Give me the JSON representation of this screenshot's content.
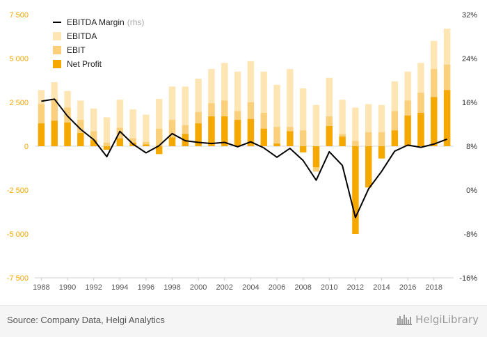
{
  "chart_data": {
    "type": "bar",
    "x": [
      "1988",
      "1989",
      "1990",
      "1991",
      "1992",
      "1993",
      "1994",
      "1995",
      "1996",
      "1997",
      "1998",
      "1999",
      "2000",
      "2001",
      "2002",
      "2003",
      "2004",
      "2005",
      "2006",
      "2007",
      "2008",
      "2009",
      "2010",
      "2011",
      "2012",
      "2013",
      "2014",
      "2015",
      "2016",
      "2017",
      "2018",
      "2019"
    ],
    "x_tick_labels": [
      "1988",
      "1990",
      "1992",
      "1994",
      "1996",
      "1998",
      "2000",
      "2002",
      "2004",
      "2006",
      "2008",
      "2010",
      "2012",
      "2014",
      "2016",
      "2018"
    ],
    "series": [
      {
        "name": "EBITDA",
        "axis": "left",
        "color": "#fde6b4",
        "values": [
          3200,
          3650,
          3150,
          2600,
          2150,
          1650,
          2650,
          2100,
          1800,
          2700,
          3400,
          3400,
          3850,
          4400,
          4750,
          4250,
          4850,
          4250,
          3500,
          4400,
          3300,
          2350,
          3900,
          2650,
          2200,
          2400,
          2350,
          3700,
          4250,
          4750,
          6000,
          6700
        ]
      },
      {
        "name": "EBIT",
        "axis": "left",
        "color": "#fbd07c",
        "values": [
          2400,
          2700,
          2200,
          1500,
          850,
          200,
          1050,
          450,
          250,
          1000,
          1500,
          1200,
          1950,
          2450,
          2600,
          2000,
          2500,
          1900,
          1100,
          1100,
          900,
          -1450,
          1700,
          700,
          300,
          800,
          800,
          2000,
          2600,
          3050,
          4400,
          4650
        ]
      },
      {
        "name": "Net Profit",
        "axis": "left",
        "color": "#f5a800",
        "values": [
          1300,
          1450,
          1350,
          750,
          350,
          -200,
          450,
          200,
          100,
          -450,
          500,
          700,
          1300,
          1700,
          1700,
          1500,
          1550,
          1000,
          150,
          850,
          -350,
          -1200,
          1150,
          550,
          -5000,
          -2350,
          -700,
          900,
          1750,
          1900,
          2800,
          3200
        ]
      },
      {
        "name": "EBITDA Margin",
        "axis": "right",
        "color": "#000000",
        "values": [
          16.2,
          16.6,
          13.5,
          11.1,
          9.2,
          6.1,
          10.7,
          8.4,
          6.8,
          8.1,
          10.3,
          9.0,
          8.7,
          8.5,
          8.7,
          7.9,
          8.8,
          7.7,
          6.0,
          7.6,
          5.4,
          1.8,
          7.0,
          4.5,
          -5.0,
          0.2,
          3.4,
          7.1,
          8.2,
          7.8,
          8.4,
          9.3
        ]
      }
    ],
    "ylim_left": [
      -7500,
      7500
    ],
    "ylim_right": [
      -16,
      32
    ],
    "y_left_ticks": [
      {
        "value": 7500,
        "label": "7 500"
      },
      {
        "value": 5000,
        "label": "5 000"
      },
      {
        "value": 2500,
        "label": "2 500"
      },
      {
        "value": 0,
        "label": "0"
      },
      {
        "value": -2500,
        "label": "-2 500"
      },
      {
        "value": -5000,
        "label": "-5 000"
      },
      {
        "value": -7500,
        "label": "-7 500"
      }
    ],
    "y_right_ticks": [
      {
        "value": 32,
        "label": "32%"
      },
      {
        "value": 24,
        "label": "24%"
      },
      {
        "value": 16,
        "label": "16%"
      },
      {
        "value": 8,
        "label": "8%"
      },
      {
        "value": 0,
        "label": "0%"
      },
      {
        "value": -8,
        "label": "-8%"
      },
      {
        "value": -16,
        "label": "-16%"
      }
    ],
    "legend": {
      "placement": "top-left",
      "items": [
        {
          "label": "EBITDA Margin",
          "suffix": "(rhs)",
          "kind": "line",
          "color": "#000000"
        },
        {
          "label": "EBITDA",
          "kind": "box",
          "color": "#fde6b4"
        },
        {
          "label": "EBIT",
          "kind": "box",
          "color": "#fbd07c"
        },
        {
          "label": "Net Profit",
          "kind": "box",
          "color": "#f5a800"
        }
      ]
    },
    "grid": false,
    "colors": {
      "left_axis_text": "#f5a800",
      "right_axis_text": "#333333",
      "x_axis_text": "#555555"
    }
  },
  "footer": {
    "source": "Source: Company Data, Helgi Analytics",
    "brand": "HelgiLibrary"
  }
}
